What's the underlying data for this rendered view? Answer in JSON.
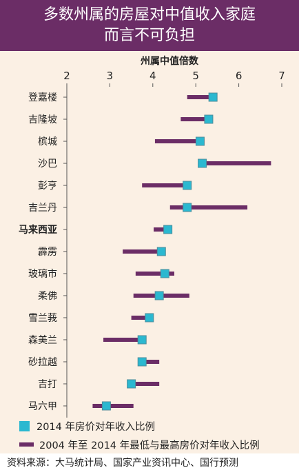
{
  "title": {
    "line1": "多数州属的房屋对中值收入家庭",
    "line2": "而言不可负担"
  },
  "chart_data": {
    "type": "dumbbell",
    "axis_title": "州属中值倍数",
    "x_ticks": [
      "2",
      "3",
      "4",
      "5",
      "6",
      "7"
    ],
    "xlim": [
      2,
      7
    ],
    "grid": false,
    "colors": {
      "range_bar": "#6b2d66",
      "marker_2014": "#2bb8d0",
      "marker_outline": "#4d8c9a",
      "axis": "#555555"
    },
    "rows": [
      {
        "name": "登嘉楼",
        "bold": false,
        "min": 4.8,
        "max": 5.45,
        "v2014": 5.4
      },
      {
        "name": "吉隆坡",
        "bold": false,
        "min": 4.65,
        "max": 5.4,
        "v2014": 5.3
      },
      {
        "name": "槟城",
        "bold": false,
        "min": 4.05,
        "max": 5.2,
        "v2014": 5.1
      },
      {
        "name": "沙巴",
        "bold": false,
        "min": 5.15,
        "max": 6.75,
        "v2014": 5.15
      },
      {
        "name": "彭亨",
        "bold": false,
        "min": 3.75,
        "max": 4.85,
        "v2014": 4.8
      },
      {
        "name": "吉兰丹",
        "bold": false,
        "min": 4.4,
        "max": 6.2,
        "v2014": 4.8
      },
      {
        "name": "马来西亚",
        "bold": true,
        "min": 4.02,
        "max": 4.4,
        "v2014": 4.35
      },
      {
        "name": "霹雳",
        "bold": false,
        "min": 3.3,
        "max": 4.25,
        "v2014": 4.2
      },
      {
        "name": "玻璃市",
        "bold": false,
        "min": 3.6,
        "max": 4.5,
        "v2014": 4.28
      },
      {
        "name": "柔佛",
        "bold": false,
        "min": 3.55,
        "max": 4.85,
        "v2014": 4.15
      },
      {
        "name": "雪兰莪",
        "bold": false,
        "min": 3.5,
        "max": 4.0,
        "v2014": 3.92
      },
      {
        "name": "森美兰",
        "bold": false,
        "min": 2.85,
        "max": 3.8,
        "v2014": 3.75
      },
      {
        "name": "砂拉越",
        "bold": false,
        "min": 3.7,
        "max": 4.15,
        "v2014": 3.75
      },
      {
        "name": "吉打",
        "bold": false,
        "min": 3.45,
        "max": 4.15,
        "v2014": 3.5
      },
      {
        "name": "马六甲",
        "bold": false,
        "min": 2.6,
        "max": 3.55,
        "v2014": 2.92
      }
    ]
  },
  "legend": {
    "item_2014": "2014 年房价对年收入比例",
    "item_range": "2004 年至 2014 年最低与最高房价对年收入比例"
  },
  "source": "资料来源：大马统计局、国家产业资讯中心、国行预测"
}
